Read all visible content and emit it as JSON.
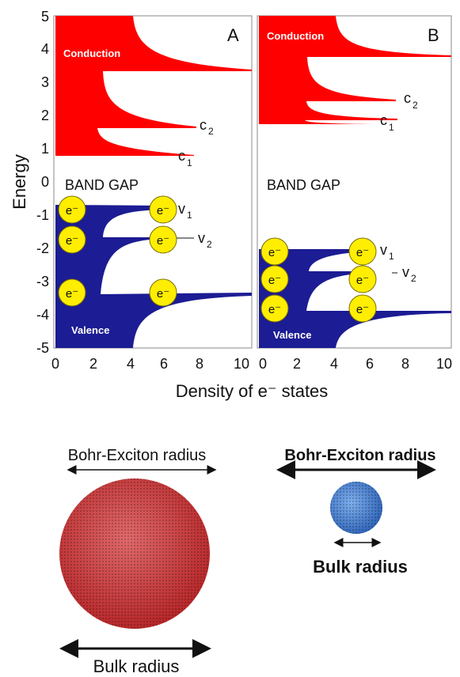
{
  "panels": [
    {
      "letter": "A",
      "conduction_label": "Conduction",
      "valence_label": "Valence",
      "band_gap_label": "BAND GAP",
      "states": [
        {
          "label": "c",
          "sub": "2",
          "energy": 1.7
        },
        {
          "label": "c",
          "sub": "1",
          "energy": 0.8
        },
        {
          "label": "v",
          "sub": "1",
          "energy": -0.8
        },
        {
          "label": "v",
          "sub": "2",
          "energy": -1.7
        }
      ],
      "electron_label": "e⁻",
      "electron_levels": [
        -0.8,
        -1.7,
        -3.4
      ]
    },
    {
      "letter": "B",
      "conduction_label": "Conduction",
      "valence_label": "Valence",
      "band_gap_label": "BAND GAP",
      "states": [
        {
          "label": "c",
          "sub": "2",
          "energy": 2.5
        },
        {
          "label": "c",
          "sub": "1",
          "energy": 1.8
        },
        {
          "label": "v",
          "sub": "1",
          "energy": -2.0
        },
        {
          "label": "v",
          "sub": "2",
          "energy": -2.7
        }
      ],
      "electron_label": "e⁻",
      "electron_levels": [
        -2.0,
        -2.7,
        -3.4
      ]
    }
  ],
  "axes": {
    "ylabel": "Energy",
    "xlabel": "Density of e⁻ states",
    "y_ticks": [
      "5",
      "4",
      "3",
      "2",
      "1",
      "0",
      "-1",
      "-2",
      "-3",
      "-4",
      "-5"
    ],
    "x_ticks": [
      "0",
      "2",
      "4",
      "6",
      "8",
      "10"
    ],
    "y_range": [
      -5,
      5
    ],
    "x_range": [
      0,
      10
    ]
  },
  "bottom": {
    "left_top_label": "Bohr-Exciton radius",
    "left_bottom_label": "Bulk radius",
    "right_top_label": "Bohr-Exciton radius",
    "right_bottom_label": "Bulk radius"
  },
  "colors": {
    "conduction": "#ff0000",
    "valence": "#1c1c94",
    "electron": "#ffee00",
    "bulk_sphere": "#c8393b",
    "dot_sphere": "#3d7fd4"
  }
}
